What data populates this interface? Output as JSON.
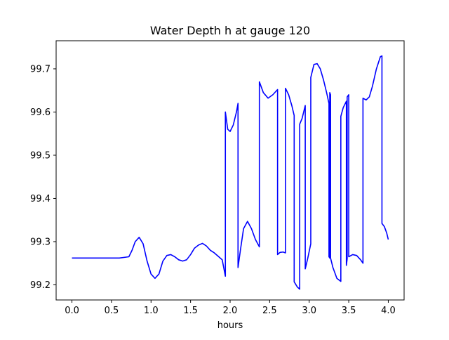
{
  "chart_data": {
    "type": "line",
    "title": "Water Depth h at gauge 120",
    "xlabel": "hours",
    "ylabel": "",
    "xlim": [
      -0.2,
      4.2
    ],
    "ylim": [
      99.165,
      99.765
    ],
    "x_ticks": [
      0.0,
      0.5,
      1.0,
      1.5,
      2.0,
      2.5,
      3.0,
      3.5,
      4.0
    ],
    "x_tick_labels": [
      "0.0",
      "0.5",
      "1.0",
      "1.5",
      "2.0",
      "2.5",
      "3.0",
      "3.5",
      "4.0"
    ],
    "y_ticks": [
      99.2,
      99.3,
      99.4,
      99.5,
      99.6,
      99.7
    ],
    "y_tick_labels": [
      "99.2",
      "99.3",
      "99.4",
      "99.5",
      "99.6",
      "99.7"
    ],
    "grid": false,
    "legend": "none",
    "series": [
      {
        "color": "#0000ff",
        "x": [
          0.0,
          0.3,
          0.6,
          0.72,
          0.76,
          0.8,
          0.85,
          0.9,
          0.95,
          1.0,
          1.05,
          1.1,
          1.15,
          1.2,
          1.25,
          1.3,
          1.35,
          1.4,
          1.45,
          1.5,
          1.55,
          1.6,
          1.65,
          1.7,
          1.75,
          1.8,
          1.85,
          1.9,
          1.94,
          1.94,
          1.97,
          2.0,
          2.04,
          2.08,
          2.1,
          2.1,
          2.13,
          2.17,
          2.22,
          2.27,
          2.32,
          2.37,
          2.37,
          2.42,
          2.48,
          2.54,
          2.6,
          2.6,
          2.63,
          2.67,
          2.7,
          2.7,
          2.74,
          2.78,
          2.81,
          2.81,
          2.85,
          2.88,
          2.88,
          2.91,
          2.93,
          2.95,
          2.95,
          2.98,
          3.02,
          3.02,
          3.06,
          3.1,
          3.14,
          3.18,
          3.22,
          3.25,
          3.25,
          3.26,
          3.26,
          3.27,
          3.27,
          3.3,
          3.35,
          3.4,
          3.4,
          3.43,
          3.47,
          3.47,
          3.48,
          3.48,
          3.5,
          3.5,
          3.55,
          3.6,
          3.65,
          3.68,
          3.68,
          3.72,
          3.76,
          3.8,
          3.85,
          3.9,
          3.92,
          3.92,
          3.95,
          3.98,
          4.0
        ],
        "y": [
          99.262,
          99.262,
          99.262,
          99.265,
          99.28,
          99.3,
          99.31,
          99.295,
          99.255,
          99.225,
          99.215,
          99.225,
          99.255,
          99.268,
          99.27,
          99.265,
          99.258,
          99.255,
          99.258,
          99.27,
          99.285,
          99.292,
          99.296,
          99.29,
          99.28,
          99.274,
          99.266,
          99.258,
          99.22,
          99.6,
          99.56,
          99.555,
          99.57,
          99.6,
          99.62,
          99.24,
          99.28,
          99.33,
          99.347,
          99.33,
          99.305,
          99.288,
          99.67,
          99.645,
          99.632,
          99.64,
          99.652,
          99.27,
          99.275,
          99.276,
          99.274,
          99.655,
          99.64,
          99.615,
          99.592,
          99.207,
          99.195,
          99.19,
          99.572,
          99.585,
          99.6,
          99.615,
          99.237,
          99.26,
          99.295,
          99.68,
          99.71,
          99.712,
          99.7,
          99.675,
          99.645,
          99.62,
          99.265,
          99.262,
          99.645,
          99.64,
          99.262,
          99.24,
          99.215,
          99.208,
          99.59,
          99.61,
          99.625,
          99.245,
          99.26,
          99.635,
          99.64,
          99.265,
          99.27,
          99.268,
          99.258,
          99.25,
          99.632,
          99.628,
          99.635,
          99.66,
          99.7,
          99.728,
          99.73,
          99.342,
          99.335,
          99.32,
          99.305
        ]
      }
    ]
  }
}
